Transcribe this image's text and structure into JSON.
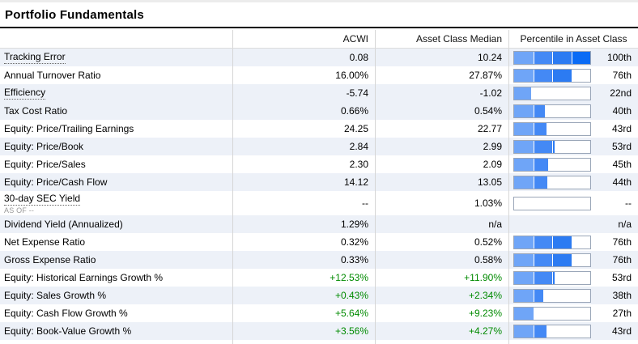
{
  "title": "Portfolio Fundamentals",
  "columns": {
    "metric": "",
    "acwi": "ACWI",
    "median": "Asset Class Median",
    "percentile": "Percentile in Asset Class"
  },
  "colors": {
    "shaded_row_bg": "#EDF1F8",
    "green_value": "#008A00",
    "bar_border": "#9AA6B8",
    "bar_unfilled": "#FFFFFF",
    "bar_quartiles": [
      "#6FA5F7",
      "#4489F5",
      "#2C7BF2",
      "#0A6BF5"
    ],
    "title_underline": "#000000"
  },
  "rows": [
    {
      "label": "Tracking Error",
      "tooltip": true,
      "sub": null,
      "acwi": "0.08",
      "median": "10.24",
      "green": false,
      "has_bar": true,
      "percentile": 100,
      "percentile_label": "100th",
      "shaded": true,
      "tall": false
    },
    {
      "label": "Annual Turnover Ratio",
      "tooltip": false,
      "sub": null,
      "acwi": "16.00%",
      "median": "27.87%",
      "green": false,
      "has_bar": true,
      "percentile": 76,
      "percentile_label": "76th",
      "shaded": false,
      "tall": false
    },
    {
      "label": "Efficiency",
      "tooltip": true,
      "sub": null,
      "acwi": "-5.74",
      "median": "-1.02",
      "green": false,
      "has_bar": true,
      "percentile": 22,
      "percentile_label": "22nd",
      "shaded": true,
      "tall": false
    },
    {
      "label": "Tax Cost Ratio",
      "tooltip": false,
      "sub": null,
      "acwi": "0.66%",
      "median": "0.54%",
      "green": false,
      "has_bar": true,
      "percentile": 40,
      "percentile_label": "40th",
      "shaded": true,
      "tall": false
    },
    {
      "label": "Equity: Price/Trailing Earnings",
      "tooltip": false,
      "sub": null,
      "acwi": "24.25",
      "median": "22.77",
      "green": false,
      "has_bar": true,
      "percentile": 43,
      "percentile_label": "43rd",
      "shaded": false,
      "tall": false
    },
    {
      "label": "Equity: Price/Book",
      "tooltip": false,
      "sub": null,
      "acwi": "2.84",
      "median": "2.99",
      "green": false,
      "has_bar": true,
      "percentile": 53,
      "percentile_label": "53rd",
      "shaded": true,
      "tall": false
    },
    {
      "label": "Equity: Price/Sales",
      "tooltip": false,
      "sub": null,
      "acwi": "2.30",
      "median": "2.09",
      "green": false,
      "has_bar": true,
      "percentile": 45,
      "percentile_label": "45th",
      "shaded": false,
      "tall": false
    },
    {
      "label": "Equity: Price/Cash Flow",
      "tooltip": false,
      "sub": null,
      "acwi": "14.12",
      "median": "13.05",
      "green": false,
      "has_bar": true,
      "percentile": 44,
      "percentile_label": "44th",
      "shaded": true,
      "tall": false
    },
    {
      "label": "30-day SEC Yield",
      "tooltip": true,
      "sub": "AS OF --",
      "acwi": "--",
      "median": "1.03%",
      "green": false,
      "has_bar": true,
      "percentile": 0,
      "percentile_label": "--",
      "shaded": false,
      "tall": true
    },
    {
      "label": "Dividend Yield (Annualized)",
      "tooltip": false,
      "sub": null,
      "acwi": "1.29%",
      "median": "n/a",
      "green": false,
      "has_bar": false,
      "percentile": null,
      "percentile_label": "n/a",
      "shaded": true,
      "tall": false
    },
    {
      "label": "Net Expense Ratio",
      "tooltip": false,
      "sub": null,
      "acwi": "0.32%",
      "median": "0.52%",
      "green": false,
      "has_bar": true,
      "percentile": 76,
      "percentile_label": "76th",
      "shaded": false,
      "tall": false
    },
    {
      "label": "Gross Expense Ratio",
      "tooltip": false,
      "sub": null,
      "acwi": "0.33%",
      "median": "0.58%",
      "green": false,
      "has_bar": true,
      "percentile": 76,
      "percentile_label": "76th",
      "shaded": true,
      "tall": false
    },
    {
      "label": "Equity: Historical Earnings Growth %",
      "tooltip": false,
      "sub": null,
      "acwi": "+12.53%",
      "median": "+11.90%",
      "green": true,
      "has_bar": true,
      "percentile": 53,
      "percentile_label": "53rd",
      "shaded": false,
      "tall": false
    },
    {
      "label": "Equity: Sales Growth %",
      "tooltip": false,
      "sub": null,
      "acwi": "+0.43%",
      "median": "+2.34%",
      "green": true,
      "has_bar": true,
      "percentile": 38,
      "percentile_label": "38th",
      "shaded": true,
      "tall": false
    },
    {
      "label": "Equity: Cash Flow Growth %",
      "tooltip": false,
      "sub": null,
      "acwi": "+5.64%",
      "median": "+9.23%",
      "green": true,
      "has_bar": true,
      "percentile": 27,
      "percentile_label": "27th",
      "shaded": false,
      "tall": false
    },
    {
      "label": "Equity: Book-Value Growth %",
      "tooltip": false,
      "sub": null,
      "acwi": "+3.56%",
      "median": "+4.27%",
      "green": true,
      "has_bar": true,
      "percentile": 43,
      "percentile_label": "43rd",
      "shaded": true,
      "tall": false
    }
  ]
}
